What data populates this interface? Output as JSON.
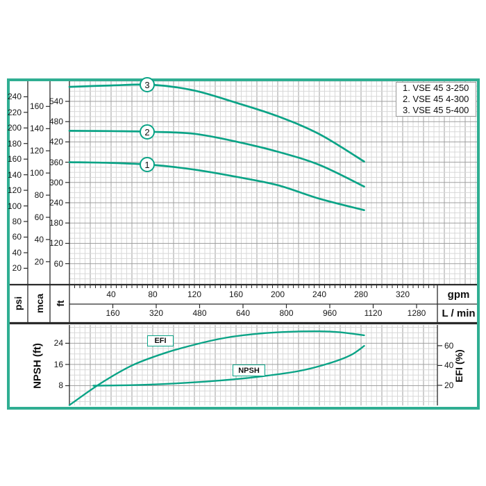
{
  "colors": {
    "curve": "#0aa386",
    "frame": "#2fae92",
    "grid_minor": "#d8d8d8",
    "grid_major": "#9f9f9f",
    "line_dark": "#2a2a2a",
    "text": "#161616"
  },
  "legend": {
    "items": [
      "1. VSE 45 3-250",
      "2. VSE 45 4-300",
      "3. VSE 45 5-400"
    ]
  },
  "curve_markers": [
    "1",
    "2",
    "3"
  ],
  "labels": {
    "efi_box": "EFI",
    "npsh_box": "NPSH"
  },
  "axes": {
    "psi": {
      "unit": "psi",
      "ticks": [
        20,
        40,
        60,
        80,
        100,
        120,
        140,
        160,
        180,
        200,
        220,
        240
      ]
    },
    "mca": {
      "unit": "mca",
      "ticks": [
        20,
        40,
        60,
        80,
        100,
        120,
        140,
        160
      ]
    },
    "ft": {
      "unit": "ft",
      "ticks": [
        60,
        120,
        180,
        240,
        300,
        360,
        420,
        480,
        540
      ]
    },
    "gpm": {
      "unit": "gpm",
      "ticks": [
        40,
        80,
        120,
        160,
        200,
        240,
        280,
        320
      ]
    },
    "lmin": {
      "unit": "L / min",
      "ticks": [
        160,
        320,
        480,
        640,
        800,
        960,
        1120,
        1280
      ]
    },
    "npsh": {
      "unit": "NPSH (ft)",
      "ticks": [
        8,
        16,
        24
      ]
    },
    "efi": {
      "unit": "EFI (%)",
      "ticks": [
        20,
        40,
        60
      ]
    }
  },
  "chart_data": [
    {
      "type": "line",
      "title": "Pump head curves VSE 45 series",
      "xlabel": "gpm",
      "x2label": "L / min",
      "ylabel": "ft",
      "ylabel2": "mca",
      "ylabel3": "psi",
      "xlim": [
        0,
        392
      ],
      "ylim_ft": [
        0,
        600
      ],
      "grid": true,
      "legend_position": "top-right",
      "series": [
        {
          "name": "1. VSE 45 3-250",
          "marker": "1",
          "x": [
            0,
            40,
            80,
            120,
            160,
            200,
            240,
            283
          ],
          "y_ft": [
            360,
            358,
            352,
            338,
            317,
            292,
            252,
            218
          ]
        },
        {
          "name": "2. VSE 45 4-300",
          "marker": "2",
          "x": [
            0,
            40,
            80,
            120,
            160,
            200,
            240,
            283
          ],
          "y_ft": [
            453,
            452,
            450,
            444,
            421,
            391,
            352,
            288
          ]
        },
        {
          "name": "3. VSE 45 5-400",
          "marker": "3",
          "x": [
            0,
            40,
            80,
            120,
            160,
            200,
            240,
            283
          ],
          "y_ft": [
            583,
            587,
            589,
            572,
            536,
            496,
            443,
            362
          ]
        }
      ]
    },
    {
      "type": "line",
      "title": "NPSH and efficiency",
      "xlabel": "gpm",
      "ylabel_left": "NPSH (ft)",
      "ylabel_right": "EFI (%)",
      "xlim": [
        0,
        353
      ],
      "ylim_left": [
        0,
        30
      ],
      "ylim_right": [
        0,
        81
      ],
      "grid": true,
      "series": [
        {
          "name": "EFI",
          "axis": "right",
          "x": [
            0,
            30,
            60,
            90,
            120,
            150,
            180,
            210,
            240,
            260,
            283
          ],
          "y": [
            0,
            22,
            40,
            52,
            61,
            68,
            72,
            74,
            74.5,
            73.5,
            70.5
          ]
        },
        {
          "name": "NPSH",
          "axis": "left",
          "x": [
            23,
            60,
            100,
            140,
            180,
            220,
            250,
            270,
            283
          ],
          "y": [
            8,
            8.2,
            8.8,
            9.8,
            11.3,
            13.5,
            16.5,
            19.5,
            23
          ]
        }
      ]
    }
  ]
}
